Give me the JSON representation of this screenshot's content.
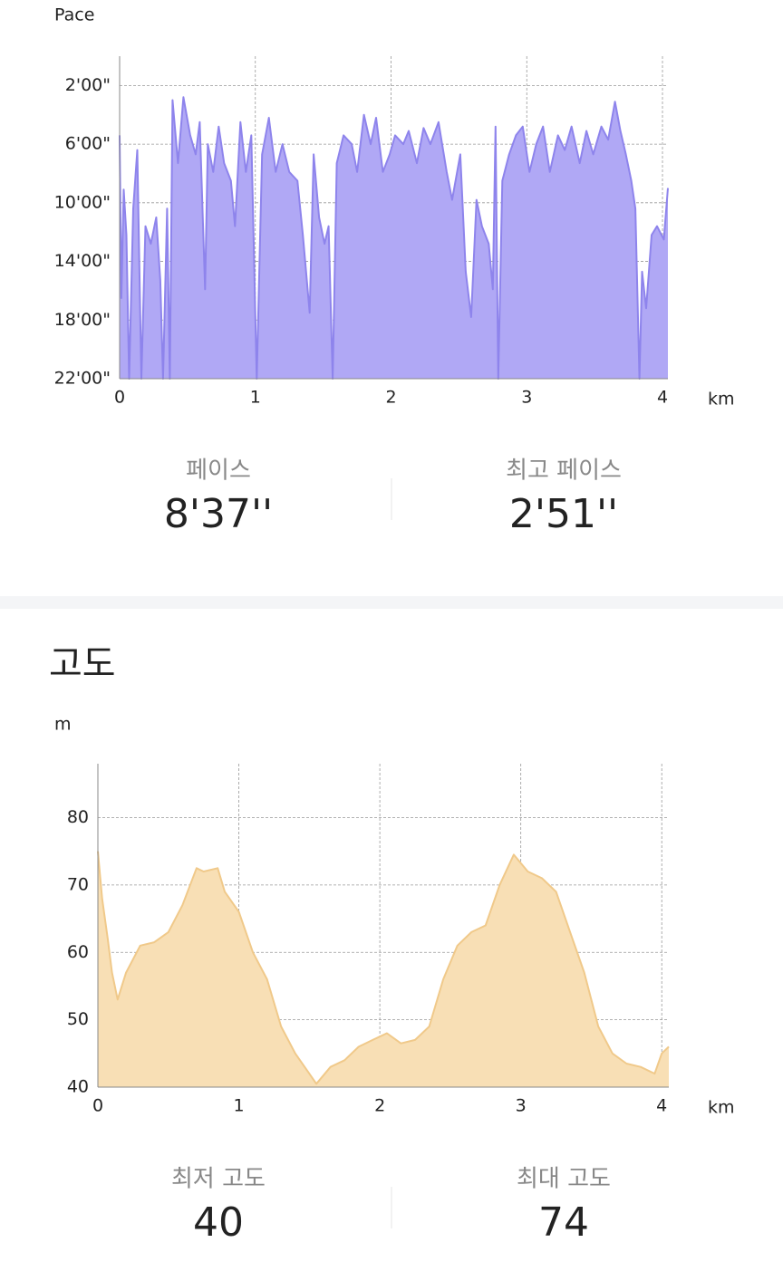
{
  "chart_data": [
    {
      "type": "area",
      "y_label": "Pace",
      "x_label": "km",
      "color": "#b0a8f5",
      "line_color": "#8e84ec",
      "xlim": [
        0,
        4.04
      ],
      "xticks": [
        0,
        1,
        2,
        3,
        4
      ],
      "ylim": [
        22,
        0
      ],
      "yticks": [
        {
          "value": 2,
          "label": "2'00\""
        },
        {
          "value": 6,
          "label": "6'00\""
        },
        {
          "value": 10,
          "label": "10'00\""
        },
        {
          "value": 14,
          "label": "14'00\""
        },
        {
          "value": 18,
          "label": "18'00\""
        },
        {
          "value": 22,
          "label": "22'00\""
        }
      ],
      "grid": true,
      "x": [
        0,
        0.013,
        0.03,
        0.05,
        0.07,
        0.1,
        0.13,
        0.16,
        0.19,
        0.23,
        0.27,
        0.3,
        0.32,
        0.35,
        0.37,
        0.39,
        0.43,
        0.47,
        0.52,
        0.56,
        0.59,
        0.63,
        0.65,
        0.69,
        0.73,
        0.77,
        0.82,
        0.85,
        0.89,
        0.93,
        0.97,
        1.01,
        1.05,
        1.1,
        1.15,
        1.2,
        1.25,
        1.31,
        1.35,
        1.4,
        1.43,
        1.47,
        1.51,
        1.54,
        1.57,
        1.6,
        1.65,
        1.71,
        1.75,
        1.8,
        1.85,
        1.89,
        1.94,
        1.99,
        2.03,
        2.09,
        2.13,
        2.19,
        2.24,
        2.29,
        2.35,
        2.41,
        2.45,
        2.51,
        2.55,
        2.59,
        2.63,
        2.67,
        2.72,
        2.75,
        2.77,
        2.79,
        2.82,
        2.87,
        2.92,
        2.97,
        3.02,
        3.07,
        3.12,
        3.17,
        3.23,
        3.28,
        3.33,
        3.39,
        3.44,
        3.49,
        3.55,
        3.6,
        3.65,
        3.69,
        3.73,
        3.77,
        3.8,
        3.83,
        3.85,
        3.88,
        3.92,
        3.96,
        4.01,
        4.04
      ],
      "values": [
        5.4,
        16.5,
        9.1,
        12.2,
        22,
        10.4,
        6.4,
        22,
        11.6,
        12.8,
        11,
        15.3,
        22,
        10.4,
        22,
        3,
        7.3,
        2.8,
        5.4,
        6.7,
        4.5,
        15.9,
        6,
        7.9,
        4.8,
        7.3,
        8.5,
        11.6,
        4.5,
        7.9,
        5.4,
        22,
        6.7,
        4.2,
        7.9,
        6,
        7.9,
        8.5,
        12.2,
        17.5,
        6.7,
        11,
        12.8,
        11.6,
        22,
        7.3,
        5.4,
        6,
        7.9,
        4,
        6,
        4.2,
        7.9,
        6.7,
        5.4,
        6,
        5.1,
        7.3,
        4.9,
        6,
        4.5,
        7.9,
        9.8,
        6.7,
        14.7,
        17.8,
        9.8,
        11.6,
        12.8,
        15.9,
        4.8,
        22,
        8.5,
        6.7,
        5.4,
        4.8,
        7.9,
        6,
        4.8,
        7.9,
        5.4,
        6.4,
        4.8,
        7.3,
        5.1,
        6.7,
        4.8,
        5.7,
        3.1,
        5.1,
        6.7,
        8.5,
        10.4,
        22,
        14.7,
        17.2,
        12.2,
        11.6,
        12.5,
        9
      ]
    },
    {
      "type": "area",
      "y_label": "m",
      "x_label": "km",
      "color": "#f8dfb5",
      "line_color": "#f0c98a",
      "xlim": [
        0,
        4.05
      ],
      "xticks": [
        0,
        1,
        2,
        3,
        4
      ],
      "ylim": [
        40,
        88
      ],
      "yticks": [
        40,
        50,
        60,
        70,
        80
      ],
      "grid": true,
      "x": [
        0,
        0.03,
        0.07,
        0.1,
        0.14,
        0.2,
        0.3,
        0.4,
        0.5,
        0.6,
        0.7,
        0.75,
        0.85,
        0.9,
        1.0,
        1.1,
        1.2,
        1.3,
        1.4,
        1.5,
        1.55,
        1.65,
        1.75,
        1.85,
        1.95,
        2.05,
        2.15,
        2.25,
        2.35,
        2.45,
        2.55,
        2.65,
        2.75,
        2.85,
        2.95,
        3.05,
        3.15,
        3.25,
        3.35,
        3.45,
        3.55,
        3.65,
        3.75,
        3.85,
        3.95,
        4.0,
        4.05
      ],
      "values": [
        75,
        68,
        62,
        57,
        53,
        57,
        61,
        61.5,
        63,
        67,
        72.5,
        72,
        72.5,
        69,
        66,
        60,
        56,
        49,
        45,
        42,
        40.5,
        43,
        44,
        46,
        47,
        48,
        46.5,
        47,
        49,
        56,
        61,
        63,
        64,
        70,
        74.5,
        72,
        71,
        69,
        63,
        57,
        49,
        45,
        43.5,
        43,
        42,
        45,
        46
      ]
    }
  ],
  "pace_stats": [
    {
      "label": "페이스",
      "value": "8'37''"
    },
    {
      "label": "최고 페이스",
      "value": "2'51''"
    }
  ],
  "section_title": "고도",
  "altitude_stats": [
    {
      "label": "최저 고도",
      "value": "40"
    },
    {
      "label": "최대 고도",
      "value": "74"
    }
  ]
}
